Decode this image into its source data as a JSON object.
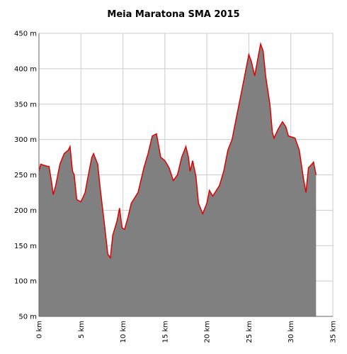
{
  "chart_data": {
    "type": "area",
    "title": "Meia Maratona SMA 2015",
    "x": [
      0,
      0.2,
      1.0,
      1.2,
      1.5,
      1.7,
      2.0,
      2.5,
      3.0,
      3.5,
      3.7,
      4.0,
      4.2,
      4.5,
      5.0,
      5.5,
      5.8,
      6.3,
      6.5,
      7.0,
      7.3,
      7.8,
      8.2,
      8.5,
      8.8,
      9.3,
      9.6,
      9.9,
      10.2,
      10.6,
      11.0,
      11.8,
      12.5,
      13.0,
      13.5,
      14.0,
      14.5,
      15.0,
      15.5,
      16.0,
      16.5,
      17.0,
      17.5,
      17.8,
      18.0,
      18.3,
      18.7,
      19.0,
      19.5,
      20.0,
      20.3,
      20.7,
      21.5,
      22.0,
      22.5,
      23.0,
      23.5,
      24.0,
      24.5,
      25.0,
      25.3,
      25.7,
      26.0,
      26.4,
      26.7,
      27.0,
      27.5,
      27.8,
      28.0,
      28.5,
      29.0,
      29.4,
      29.7,
      30.5,
      31.0,
      31.5,
      31.8,
      32.1,
      32.5,
      32.7,
      33.0
    ],
    "y": [
      255,
      265,
      262,
      262,
      240,
      222,
      235,
      265,
      280,
      285,
      290,
      255,
      250,
      215,
      212,
      225,
      245,
      275,
      280,
      265,
      230,
      180,
      138,
      133,
      165,
      185,
      203,
      175,
      173,
      190,
      210,
      225,
      260,
      280,
      305,
      308,
      275,
      270,
      260,
      242,
      250,
      275,
      290,
      275,
      255,
      270,
      248,
      210,
      195,
      210,
      228,
      220,
      235,
      255,
      285,
      300,
      330,
      360,
      390,
      420,
      410,
      390,
      410,
      435,
      425,
      390,
      350,
      310,
      302,
      315,
      325,
      318,
      305,
      302,
      285,
      245,
      225,
      260,
      265,
      268,
      250
    ],
    "fill_color": "#808080",
    "line_color": "#e00000",
    "xlim": [
      0,
      35
    ],
    "ylim": [
      50,
      450
    ],
    "xticks": [
      {
        "value": 0,
        "label": "0 km"
      },
      {
        "value": 5,
        "label": "5 km"
      },
      {
        "value": 10,
        "label": "10 km"
      },
      {
        "value": 15,
        "label": "15 km"
      },
      {
        "value": 20,
        "label": "20 km"
      },
      {
        "value": 25,
        "label": "25 km"
      },
      {
        "value": 30,
        "label": "30 km"
      },
      {
        "value": 35,
        "label": "35 km"
      }
    ],
    "yticks": [
      {
        "value": 50,
        "label": "50 m"
      },
      {
        "value": 100,
        "label": "100 m"
      },
      {
        "value": 150,
        "label": "150 m"
      },
      {
        "value": 200,
        "label": "200 m"
      },
      {
        "value": 250,
        "label": "250 m"
      },
      {
        "value": 300,
        "label": "300 m"
      },
      {
        "value": 350,
        "label": "350 m"
      },
      {
        "value": 400,
        "label": "400 m"
      },
      {
        "value": 450,
        "label": "450 m"
      }
    ],
    "grid": true
  }
}
